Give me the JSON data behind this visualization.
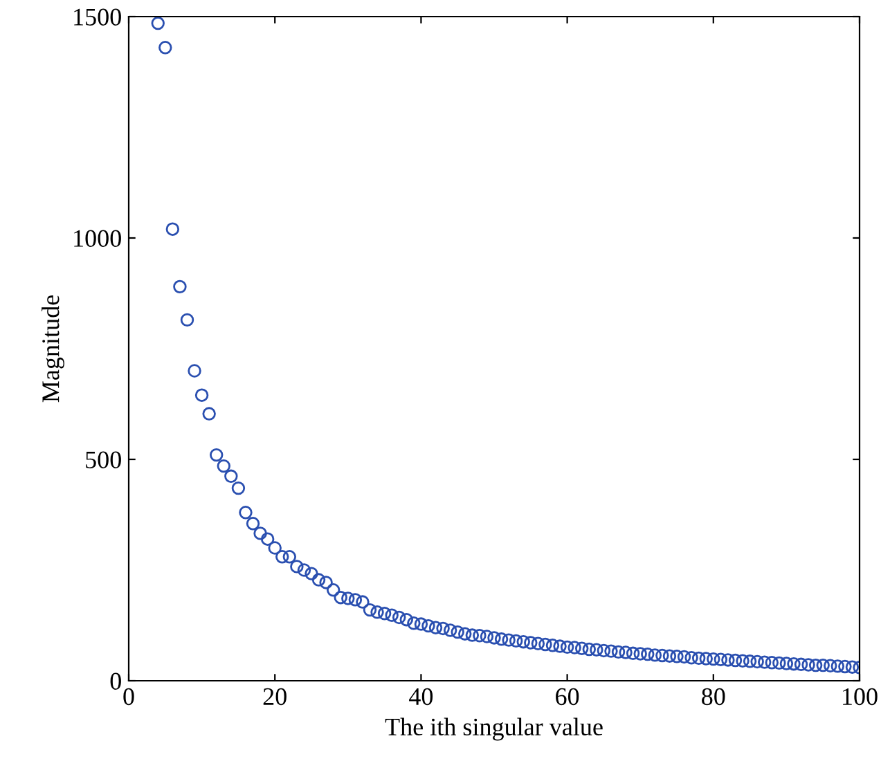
{
  "chart_data": {
    "type": "scatter",
    "xlabel": "The ith singular value",
    "ylabel": "Magnitude",
    "x": [
      4,
      5,
      6,
      7,
      8,
      9,
      10,
      11,
      12,
      13,
      14,
      15,
      16,
      17,
      18,
      19,
      20,
      21,
      22,
      23,
      24,
      25,
      26,
      27,
      28,
      29,
      30,
      31,
      32,
      33,
      34,
      35,
      36,
      37,
      38,
      39,
      40,
      41,
      42,
      43,
      44,
      45,
      46,
      47,
      48,
      49,
      50,
      51,
      52,
      53,
      54,
      55,
      56,
      57,
      58,
      59,
      60,
      61,
      62,
      63,
      64,
      65,
      66,
      67,
      68,
      69,
      70,
      71,
      72,
      73,
      74,
      75,
      76,
      77,
      78,
      79,
      80,
      81,
      82,
      83,
      84,
      85,
      86,
      87,
      88,
      89,
      90,
      91,
      92,
      93,
      94,
      95,
      96,
      97,
      98,
      99,
      100
    ],
    "series": [
      {
        "color": "#2a4fb0",
        "values": [
          1485,
          1430,
          1020,
          890,
          815,
          700,
          645,
          603,
          510,
          485,
          462,
          435,
          380,
          355,
          333,
          320,
          300,
          280,
          280,
          258,
          250,
          242,
          228,
          222,
          205,
          188,
          186,
          183,
          178,
          160,
          155,
          152,
          148,
          143,
          138,
          130,
          128,
          124,
          120,
          118,
          114,
          110,
          106,
          103,
          102,
          100,
          97,
          94,
          92,
          90,
          88,
          86,
          84,
          82,
          80,
          78,
          76,
          75,
          73,
          71,
          70,
          68,
          67,
          65,
          64,
          62,
          61,
          60,
          58,
          57,
          56,
          55,
          54,
          52,
          51,
          50,
          49,
          48,
          47,
          46,
          45,
          44,
          43,
          42,
          41,
          40,
          39,
          38,
          37,
          36,
          35,
          35,
          34,
          33,
          32,
          31,
          30
        ]
      }
    ],
    "marker": "circle",
    "xlim": [
      0,
      100
    ],
    "ylim": [
      0,
      1500
    ],
    "xticks": [
      0,
      20,
      40,
      60,
      80,
      100
    ],
    "yticks": [
      0,
      500,
      1000,
      1500
    ],
    "grid": false,
    "legend": false
  }
}
